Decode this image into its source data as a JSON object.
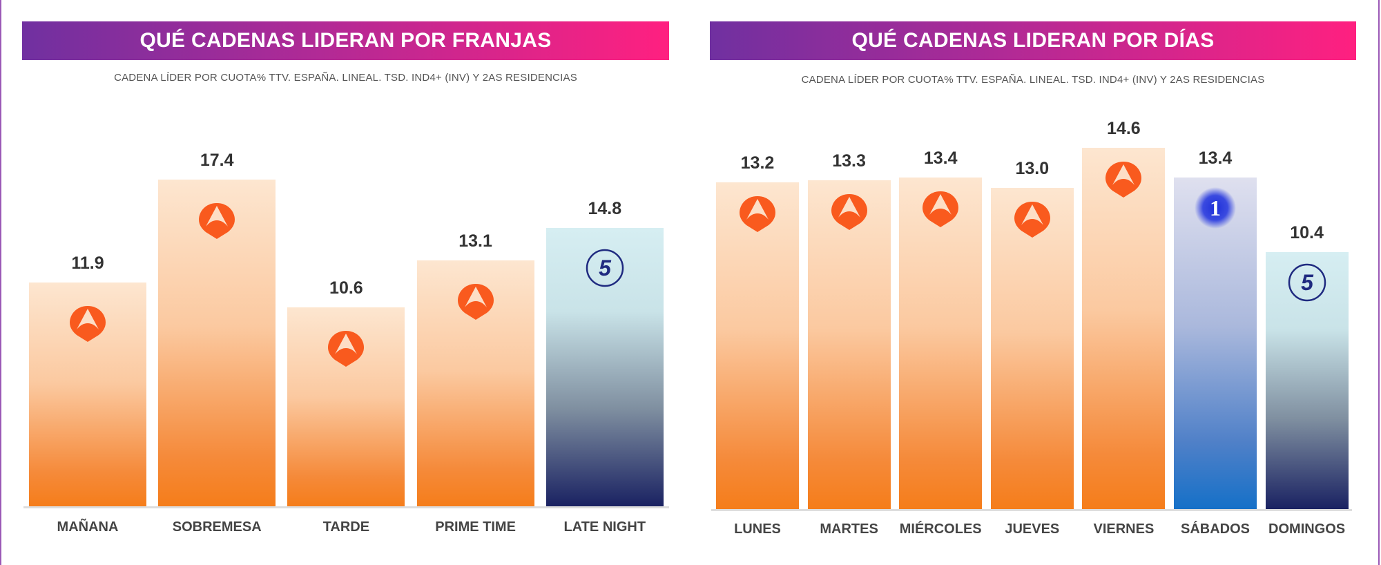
{
  "colors": {
    "antena3": "#f95a1e",
    "telecinco": "#1f2a80",
    "la1": "#2d3ad0"
  },
  "chart_data": [
    {
      "type": "bar",
      "title": "QUÉ CADENAS LIDERAN POR FRANJAS",
      "subtitle": "CADENA LÍDER POR CUOTA% TTV. ESPAÑA. LINEAL. TSD. IND4+ (INV) Y 2AS RESIDENCIAS",
      "categories": [
        "MAÑANA",
        "SOBREMESA",
        "TARDE",
        "PRIME TIME",
        "LATE NIGHT"
      ],
      "values": [
        11.9,
        17.4,
        10.6,
        13.1,
        14.8
      ],
      "labels": [
        "11.9",
        "17.4",
        "10.6",
        "13.1",
        "14.8"
      ],
      "leaders": [
        "antena3",
        "antena3",
        "antena3",
        "antena3",
        "telecinco"
      ],
      "ylim": [
        0,
        17.4
      ],
      "grid": false,
      "legend": "none"
    },
    {
      "type": "bar",
      "title": "QUÉ CADENAS LIDERAN POR DÍAS",
      "subtitle": "CADENA LÍDER POR CUOTA% TTV. ESPAÑA. LINEAL. TSD. IND4+ (INV) Y 2AS RESIDENCIAS",
      "categories": [
        "LUNES",
        "MARTES",
        "MIÉRCOLES",
        "JUEVES",
        "VIERNES",
        "SÁBADOS",
        "DOMINGOS"
      ],
      "values": [
        13.2,
        13.3,
        13.4,
        13.0,
        14.6,
        13.4,
        10.4
      ],
      "labels": [
        "13.2",
        "13.3",
        "13.4",
        "13.0",
        "14.6",
        "13.4",
        "10.4"
      ],
      "leaders": [
        "antena3",
        "antena3",
        "antena3",
        "antena3",
        "antena3",
        "la1",
        "telecinco"
      ],
      "ylim": [
        0,
        14.6
      ],
      "grid": false,
      "legend": "none"
    }
  ]
}
